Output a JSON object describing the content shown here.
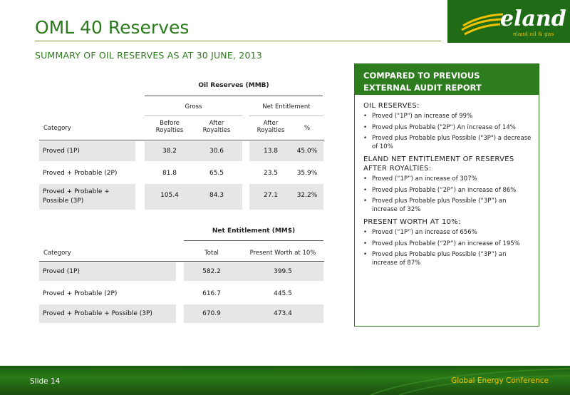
{
  "slide": {
    "title": "OML 40 Reserves",
    "subtitle": "SUMMARY OF OIL RESERVES AS AT 30 JUNE, 2013",
    "logo": {
      "name": "eland",
      "tagline": "eland oil & gas"
    }
  },
  "oil_table": {
    "caption": "Oil Reserves (MMB)",
    "group_gross": "Gross",
    "group_net": "Net Entitlement",
    "col_category": "Category",
    "col_before": "Before Royalties",
    "col_after": "After Royalties",
    "col_after_net": "After Royalties",
    "col_pct": "%",
    "rows": [
      {
        "category": "Proved (1P)",
        "before": "38.2",
        "after": "30.6",
        "net": "13.8",
        "pct": "45.0%"
      },
      {
        "category": "Proved + Probable (2P)",
        "before": "81.8",
        "after": "65.5",
        "net": "23.5",
        "pct": "35.9%"
      },
      {
        "category": "Proved + Probable + Possible (3P)",
        "before": "105.4",
        "after": "84.3",
        "net": "27.1",
        "pct": "32.2%"
      }
    ]
  },
  "net_table": {
    "caption": "Net Entitlement (MM$)",
    "col_category": "Category",
    "col_total": "Total",
    "col_pw": "Present Worth at 10%",
    "rows": [
      {
        "category": "Proved (1P)",
        "total": "582.2",
        "pw": "399.5"
      },
      {
        "category": "Proved + Probable (2P)",
        "total": "616.7",
        "pw": "445.5"
      },
      {
        "category": "Proved + Probable + Possible (3P)",
        "total": "670.9",
        "pw": "473.4"
      }
    ]
  },
  "panel": {
    "heading": "COMPARED TO PREVIOUS EXTERNAL AUDIT REPORT",
    "sections": [
      {
        "title": "OIL RESERVES:",
        "items": [
          "Proved (\"1P\")  an increase of 99%",
          "Proved plus Probable (\"2P\") An increase of 14%",
          "Proved plus Probable plus Possible (\"3P\") a decrease of 10%"
        ]
      },
      {
        "title": "ELAND NET ENTITLEMENT OF RESERVES AFTER ROYALTIES:",
        "items": [
          "Proved (“1P”) an increase of 307%",
          "Proved plus Probable (“2P”) an increase of 86%",
          "Proved plus Probable plus Possible (“3P”) an increase of 32%"
        ]
      },
      {
        "title": "PRESENT WORTH AT 10%:",
        "items": [
          "Proved  (“1P”) an increase of 656%",
          "Proved plus Probable (“2P”) an increase of 195%",
          "Proved plus Probable plus Possible (“3P”) an increase of 87%"
        ]
      }
    ]
  },
  "footer": {
    "slide_number": "Slide 14",
    "event": "Global Energy Conference"
  },
  "colors": {
    "accent_green": "#2d7d1f",
    "title_green": "#2a7a1c",
    "footer_text": "#f2c200",
    "row_shade": "#e6e6e6"
  }
}
